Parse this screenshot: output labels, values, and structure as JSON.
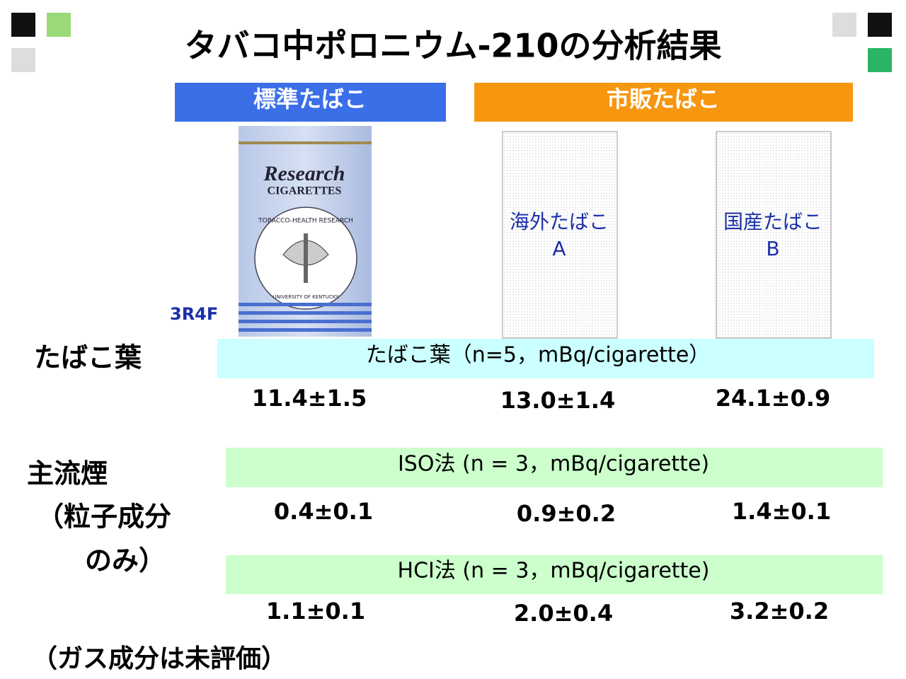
{
  "title": "タバコ中ポロニウム-210の分析結果",
  "groups": [
    {
      "label": "標準たばこ"
    },
    {
      "label": "市販たばこ"
    }
  ],
  "pack": {
    "brand": "Research",
    "line": "CIGARETTES",
    "seal_top": "TOBACCO-HEALTH RESEARCH",
    "seal_bottom": "UNIVERSITY OF KENTUCKY",
    "sample": "3R4F"
  },
  "products": [
    {
      "lines": [
        "海外たばこ",
        "A"
      ]
    },
    {
      "lines": [
        "国産たばこ",
        "B"
      ]
    }
  ],
  "leaf": {
    "label": "たばこ葉",
    "band": "たばこ葉（n=5，mBq/cigarette）",
    "values": [
      "11.4±1.5",
      "13.0±1.4",
      "24.1±0.9"
    ]
  },
  "mainstream": {
    "label_lines": [
      "主流煙",
      "（粒子成分",
      "のみ）"
    ],
    "methods": [
      {
        "band": "ISO法 (n = 3，mBq/cigarette)",
        "values": [
          "0.4±0.1",
          "0.9±0.2",
          "1.4±0.1"
        ]
      },
      {
        "band": "HCI法 (n = 3，mBq/cigarette)",
        "values": [
          "1.1±0.1",
          "2.0±0.4",
          "3.2±0.2"
        ]
      }
    ]
  },
  "note": "（ガス成分は未評価）"
}
